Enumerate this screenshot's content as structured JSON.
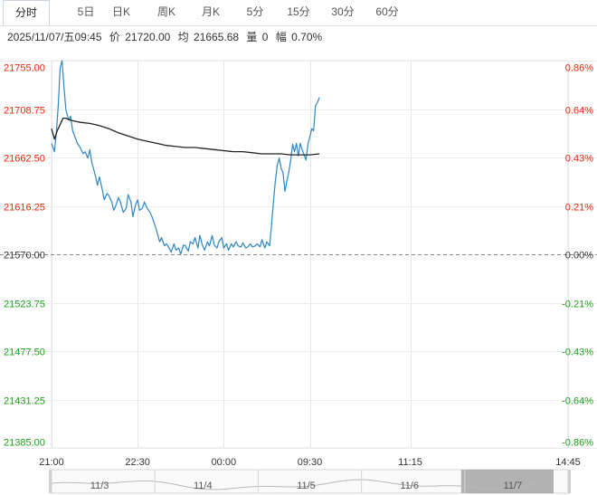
{
  "tabs": [
    {
      "label": "分时",
      "active": true
    },
    {
      "label": "5日",
      "active": false
    },
    {
      "label": "日K",
      "active": false
    },
    {
      "label": "周K",
      "active": false
    },
    {
      "label": "月K",
      "active": false
    },
    {
      "label": "5分",
      "active": false
    },
    {
      "label": "15分",
      "active": false
    },
    {
      "label": "30分",
      "active": false
    },
    {
      "label": "60分",
      "active": false
    }
  ],
  "info": {
    "datetime": "2025/11/07/五09:45",
    "price_label": "价",
    "price": "21720.00",
    "avg_label": "均",
    "avg": "21665.68",
    "volume_label": "量",
    "volume": "0",
    "change_label": "幅",
    "change": "0.70%"
  },
  "colors": {
    "up": "#e8240d",
    "down": "#1d9e1d",
    "flat": "#333333",
    "price_line": "#2f86c2",
    "avg_line": "#222222"
  },
  "chart_data": {
    "type": "line",
    "prev_close": 21570.0,
    "ylim": [
      21385.0,
      21755.0
    ],
    "y_ticks": [
      "21755.00",
      "21708.75",
      "21662.50",
      "21616.25",
      "21570.00",
      "21523.75",
      "21477.50",
      "21431.25",
      "21385.00"
    ],
    "pct_ticks": [
      "0.86%",
      "0.64%",
      "0.43%",
      "0.21%",
      "0.00%",
      "-0.21%",
      "-0.43%",
      "-0.64%",
      "-0.86%"
    ],
    "x_ticks": [
      "21:00",
      "22:30",
      "00:00",
      "09:30",
      "11:15",
      "14:45"
    ],
    "x_tick_minutes": [
      0,
      90,
      180,
      270,
      375,
      540
    ],
    "x_range_minutes": [
      0,
      540
    ],
    "series": [
      {
        "key": "price",
        "x": [
          0,
          3,
          5,
          7,
          9,
          11,
          13,
          15,
          18,
          20,
          22,
          25,
          27,
          30,
          33,
          35,
          38,
          40,
          42,
          45,
          48,
          50,
          53,
          55,
          58,
          60,
          63,
          65,
          67,
          70,
          72,
          75,
          78,
          80,
          83,
          85,
          88,
          90,
          92,
          95,
          97,
          100,
          103,
          105,
          108,
          110,
          113,
          115,
          118,
          120,
          123,
          125,
          128,
          130,
          133,
          135,
          138,
          140,
          143,
          145,
          148,
          150,
          153,
          155,
          158,
          160,
          163,
          165,
          168,
          170,
          173,
          175,
          178,
          180,
          183,
          185,
          188,
          190,
          193,
          195,
          198,
          200,
          203,
          205,
          208,
          210,
          213,
          215,
          218,
          220,
          223,
          225,
          228,
          230,
          232,
          234,
          236,
          238,
          240,
          242,
          244,
          246,
          248,
          250,
          252,
          254,
          256,
          258,
          260,
          262,
          264,
          266,
          268,
          270,
          272,
          274,
          276,
          278,
          280
        ],
        "values": [
          21676,
          21668,
          21686,
          21712,
          21748,
          21755,
          21730,
          21708,
          21698,
          21702,
          21688,
          21681,
          21676,
          21672,
          21666,
          21668,
          21662,
          21670,
          21658,
          21648,
          21636,
          21644,
          21632,
          21622,
          21628,
          21626,
          21620,
          21612,
          21616,
          21624,
          21620,
          21610,
          21614,
          21627,
          21620,
          21606,
          21618,
          21622,
          21612,
          21614,
          21620,
          21614,
          21610,
          21606,
          21598,
          21592,
          21582,
          21586,
          21578,
          21580,
          21576,
          21572,
          21580,
          21574,
          21576,
          21570,
          21579,
          21578,
          21573,
          21582,
          21580,
          21586,
          21576,
          21588,
          21578,
          21574,
          21582,
          21578,
          21588,
          21579,
          21576,
          21582,
          21586,
          21576,
          21580,
          21574,
          21580,
          21577,
          21582,
          21578,
          21577,
          21581,
          21576,
          21577,
          21580,
          21577,
          21578,
          21580,
          21577,
          21584,
          21576,
          21582,
          21578,
          21598,
          21620,
          21640,
          21655,
          21662,
          21652,
          21648,
          21630,
          21640,
          21648,
          21660,
          21675,
          21668,
          21676,
          21664,
          21676,
          21670,
          21665,
          21660,
          21675,
          21682,
          21690,
          21688,
          21712,
          21715,
          21720
        ]
      },
      {
        "key": "avg",
        "x": [
          0,
          3,
          6,
          10,
          12,
          15,
          20,
          30,
          40,
          50,
          60,
          70,
          80,
          90,
          100,
          110,
          120,
          130,
          140,
          150,
          160,
          170,
          180,
          190,
          200,
          210,
          220,
          230,
          240,
          250,
          260,
          270,
          280
        ],
        "values": [
          21690,
          21680,
          21688,
          21696,
          21700,
          21700,
          21698,
          21696,
          21695,
          21693,
          21690,
          21686,
          21683,
          21680,
          21678,
          21676,
          21674,
          21673,
          21672,
          21672,
          21671,
          21670,
          21669,
          21668,
          21668,
          21667,
          21666,
          21666,
          21666,
          21665,
          21665,
          21665,
          21666
        ]
      }
    ]
  },
  "navigator": {
    "dates": [
      "11/3",
      "11/4",
      "11/5",
      "11/6",
      "11/7"
    ]
  }
}
